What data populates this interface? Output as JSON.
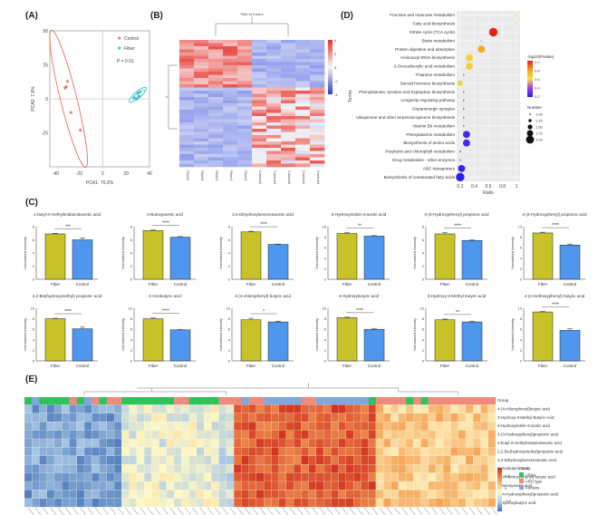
{
  "figure": {
    "panel_labels": [
      "(A)",
      "(B)",
      "(C)",
      "(D)",
      "(E)"
    ]
  },
  "chart_data": [
    {
      "panel": "A",
      "type": "scatter",
      "title": "",
      "xlabel": "PCA1: 70.2%",
      "ylabel": "PCA2: 7.8%",
      "xlim": [
        -45,
        40
      ],
      "ylim": [
        -50,
        50
      ],
      "xticks": [
        -40,
        -20,
        0,
        20,
        40
      ],
      "yticks": [
        50,
        25,
        0,
        -25
      ],
      "annotation": "P = 0.01",
      "legend": [
        {
          "name": "Control",
          "color": "#e8604c",
          "marker": "star"
        },
        {
          "name": "Fiber",
          "color": "#1fb5c1",
          "marker": "star"
        }
      ],
      "legend_position": "top-right",
      "series": [
        {
          "name": "Control",
          "points": [
            [
              -30,
              13
            ],
            [
              -32,
              8
            ],
            [
              -31,
              9
            ],
            [
              -27,
              -10
            ],
            [
              -19,
              -23
            ]
          ]
        },
        {
          "name": "Fiber",
          "points": [
            [
              27,
              1
            ],
            [
              30,
              4
            ],
            [
              31,
              2
            ],
            [
              32,
              5
            ],
            [
              29,
              0
            ]
          ]
        }
      ]
    },
    {
      "panel": "B",
      "type": "heatmap",
      "title": "Fiber vs Control",
      "columns": [
        "Fiber2",
        "Fiber5",
        "Fiber3",
        "Fiber1",
        "Fiber4",
        "Control2",
        "Control3",
        "Control5",
        "Control1",
        "Control4"
      ],
      "colorbar_ticks": [
        4,
        2,
        0,
        -2,
        -4
      ],
      "colorbar_range": [
        -4,
        4
      ],
      "colors": {
        "high": "#e8302a",
        "mid": "#f7f7f7",
        "low": "#2b3ccf"
      }
    },
    {
      "panel": "C",
      "type": "bar",
      "ylabel": "Normalized intensity",
      "categories": [
        "Fiber",
        "Control"
      ],
      "colors": {
        "Fiber": "#c8c228",
        "Control": "#4f97ee"
      },
      "subplots": [
        {
          "title": "1-butyl-3-methylimidazoleacetic acid",
          "values": [
            6.9,
            6.0
          ],
          "errors": [
            0.1,
            0.3
          ],
          "ylim": [
            0,
            8
          ],
          "yticks": [
            0,
            2,
            4,
            6,
            8
          ],
          "sig": "***"
        },
        {
          "title": "2-Butoxyacetic acid",
          "values": [
            7.4,
            6.4
          ],
          "errors": [
            0.1,
            0.1
          ],
          "ylim": [
            0,
            8
          ],
          "yticks": [
            0,
            2,
            4,
            6,
            8
          ],
          "sig": "****"
        },
        {
          "title": "3,4-Dihydroxybenzeneacetic acid",
          "values": [
            7.2,
            5.3
          ],
          "errors": [
            0.1,
            0.05
          ],
          "ylim": [
            0,
            8
          ],
          "yticks": [
            0,
            2,
            4,
            6,
            8
          ],
          "sig": "****"
        },
        {
          "title": "5-Hydroxyindole-3-acetic acid",
          "values": [
            8.7,
            8.2
          ],
          "errors": [
            0.15,
            0.1
          ],
          "ylim": [
            0,
            10
          ],
          "yticks": [
            0,
            2,
            4,
            6,
            8,
            10
          ],
          "sig": "**"
        },
        {
          "title": "3-(3-Hydroxyphenyl) propionic acid",
          "values": [
            6.9,
            5.9
          ],
          "errors": [
            0.2,
            0.1
          ],
          "ylim": [
            0,
            8
          ],
          "yticks": [
            0,
            2,
            4,
            6,
            8
          ],
          "sig": "****"
        },
        {
          "title": "3-(4-Hydroxyphenyl) propionic acid",
          "values": [
            8.8,
            6.5
          ],
          "errors": [
            0.15,
            0.2
          ],
          "ylim": [
            0,
            10
          ],
          "yticks": [
            0,
            2,
            4,
            6,
            8,
            10
          ],
          "sig": "****"
        },
        {
          "title": "2,2-Bis(hydroxymethyl) propionic acid",
          "values": [
            8.0,
            6.1
          ],
          "errors": [
            0.1,
            0.3
          ],
          "ylim": [
            0,
            10
          ],
          "yticks": [
            0,
            2,
            4,
            6,
            8,
            10
          ],
          "sig": "****"
        },
        {
          "title": "2-Oxobutyric acid",
          "values": [
            8.0,
            5.9
          ],
          "errors": [
            0.15,
            0.05
          ],
          "ylim": [
            0,
            10
          ],
          "yticks": [
            0,
            2,
            4,
            6,
            8,
            10
          ],
          "sig": "****"
        },
        {
          "title": "4-(4-chlorophenyl) butyric acid",
          "values": [
            7.8,
            7.4
          ],
          "errors": [
            0.3,
            0.15
          ],
          "ylim": [
            0,
            10
          ],
          "yticks": [
            0,
            2,
            4,
            6,
            8,
            10
          ],
          "sig": "*"
        },
        {
          "title": "4-Hydroxybutyric acid",
          "values": [
            8.2,
            6.0
          ],
          "errors": [
            0.1,
            0.1
          ],
          "ylim": [
            0,
            10
          ],
          "yticks": [
            0,
            2,
            4,
            6,
            8,
            10
          ],
          "sig": "****"
        },
        {
          "title": "3-Hydroxy-3-Methyl butyric acid",
          "values": [
            7.8,
            7.4
          ],
          "errors": [
            0.15,
            0.15
          ],
          "ylim": [
            0,
            10
          ],
          "yticks": [
            0,
            2,
            4,
            6,
            8,
            10
          ],
          "sig": "**"
        },
        {
          "title": "4-(4-methoxyphenyl) butyric acid",
          "values": [
            9.3,
            5.8
          ],
          "errors": [
            0.1,
            0.3
          ],
          "ylim": [
            0,
            10
          ],
          "yticks": [
            0,
            2,
            4,
            6,
            8,
            10
          ],
          "sig": "****"
        }
      ]
    },
    {
      "panel": "D",
      "type": "scatter",
      "xlabel": "Ratio",
      "ylabel": "Terms",
      "xlim": [
        0.15,
        1.05
      ],
      "xticks": [
        0.2,
        0.4,
        0.6,
        0.8,
        1.0
      ],
      "terms": [
        {
          "term": "Fructose and mannose metabolism",
          "ratio": 1.0,
          "neglog10p": 0.62,
          "number": 1.0
        },
        {
          "term": "Fatty acid biosynthesis",
          "ratio": 1.0,
          "neglog10p": 0.62,
          "number": 1.0
        },
        {
          "term": "Citrate cycle (TCA cycle)",
          "ratio": 0.67,
          "neglog10p": 1.0,
          "number": 2.0
        },
        {
          "term": "Biotin metabolism",
          "ratio": 0.5,
          "neglog10p": 0.55,
          "number": 1.0
        },
        {
          "term": "Protein digestion and absorption",
          "ratio": 0.5,
          "neglog10p": 0.78,
          "number": 1.75
        },
        {
          "term": "Aminoacyl-tRNA biosynthesis",
          "ratio": 0.33,
          "neglog10p": 0.65,
          "number": 1.75
        },
        {
          "term": "2-Oxocarboxylic acid metabolism",
          "ratio": 0.33,
          "neglog10p": 0.65,
          "number": 1.75
        },
        {
          "term": "Thiamine metabolism",
          "ratio": 0.25,
          "neglog10p": 0.3,
          "number": 1.0
        },
        {
          "term": "Steroid hormone biosynthesis",
          "ratio": 0.2,
          "neglog10p": 0.58,
          "number": 1.5
        },
        {
          "term": "Phenylalanine, tyrosine and tryptophan biosynthesis",
          "ratio": 0.25,
          "neglog10p": 0.3,
          "number": 1.0
        },
        {
          "term": "Longevity regulating pathway",
          "ratio": 0.25,
          "neglog10p": 0.3,
          "number": 1.0
        },
        {
          "term": "Dopaminergic synapse",
          "ratio": 0.25,
          "neglog10p": 0.3,
          "number": 1.0
        },
        {
          "term": "Ubiquinone and other terpenoid-quinone biosynthesis",
          "ratio": 0.25,
          "neglog10p": 0.3,
          "number": 1.0
        },
        {
          "term": "Vitamin B6 metabolism",
          "ratio": 0.25,
          "neglog10p": 0.3,
          "number": 1.0
        },
        {
          "term": "Phenylalanine metabolism",
          "ratio": 0.29,
          "neglog10p": 0.25,
          "number": 1.75
        },
        {
          "term": "Biosynthesis of amino acids",
          "ratio": 0.29,
          "neglog10p": 0.25,
          "number": 1.75
        },
        {
          "term": "Porphyrin and chlorophyll metabolism",
          "ratio": 0.2,
          "neglog10p": 0.25,
          "number": 1.0
        },
        {
          "term": "Drug metabolism - other enzymes",
          "ratio": 0.2,
          "neglog10p": 0.25,
          "number": 1.0
        },
        {
          "term": "ABC transporters",
          "ratio": 0.22,
          "neglog10p": 0.22,
          "number": 1.75
        },
        {
          "term": "Biosynthesis of unsaturated fatty acids",
          "ratio": 0.2,
          "neglog10p": 0.2,
          "number": 2.0
        }
      ],
      "color_legend": {
        "title": "-log10(Pvalue)",
        "ticks": [
          1.0,
          0.8,
          0.6,
          0.4,
          0.2
        ],
        "colors": [
          "#2a1ef0",
          "#9b3df0",
          "#f5e43a",
          "#f5a020",
          "#e8201a"
        ]
      },
      "size_legend": {
        "title": "Number",
        "ticks": [
          1.0,
          1.25,
          1.5,
          1.75,
          2.0
        ]
      }
    },
    {
      "panel": "E",
      "type": "heatmap",
      "rows": [
        "Group",
        "4-(4-chlorophenyl)butyric acid",
        "3-Hydroxy-3-Methyl Butyric Acid",
        "5-Hydroxyindole-3-acetic acid",
        "3-(3-Hydroxyphenyl)propionic acid",
        "1-butyl-3-methylimidazoleacetic acid",
        "2,2-Bis(hydroxymethyl)propionic acid",
        "3,4-Dihydroxybenzeneacetic Acid",
        "2-Oxobutyric acid",
        "4-(4-methoxyphenyl) butyric acid",
        "2-Butoxyacetic acid",
        "3-(4-Hydroxyphenyl)propionic acid",
        "4-Hydroxybutyric acid"
      ],
      "colorbar_ticks": [
        0.8,
        0,
        -0.5
      ],
      "colorbar_range": [
        -0.8,
        0.8
      ],
      "group_legend": {
        "title": "Group",
        "items": [
          {
            "name": "ARGs",
            "color": "#2ec45a"
          },
          {
            "name": "ARG type",
            "color": "#f08a7a"
          },
          {
            "name": "Pentens",
            "color": "#7fa8e0"
          }
        ]
      }
    }
  ]
}
